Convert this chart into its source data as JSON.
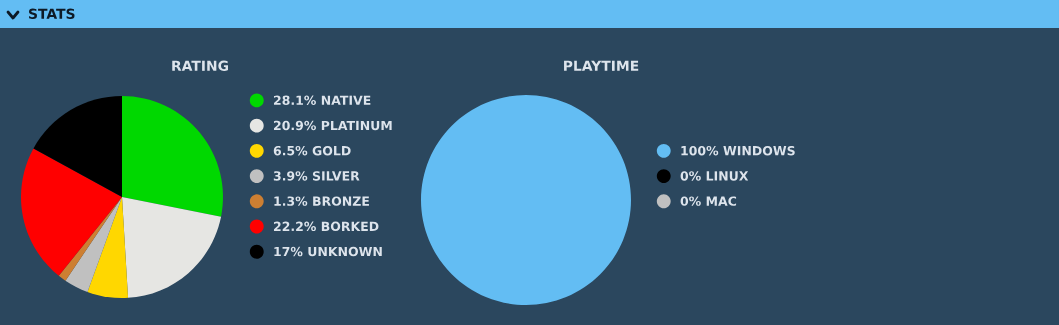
{
  "chart_data": [
    {
      "type": "pie",
      "title": "RATING",
      "annotations": [
        "STATS"
      ],
      "legend": "right",
      "categories": [
        "NATIVE",
        "PLATINUM",
        "GOLD",
        "SILVER",
        "BRONZE",
        "BORKED",
        "UNKNOWN"
      ],
      "values": [
        28.1,
        20.9,
        6.5,
        3.9,
        1.3,
        22.2,
        17
      ],
      "value_labels": [
        "28.1%",
        "20.9%",
        "6.5%",
        "3.9%",
        "1.3%",
        "22.2%",
        "17%"
      ],
      "colors": [
        "#00d800",
        "#e6e6e3",
        "#ffd700",
        "#c0c0c0",
        "#cd7f32",
        "#ff0000",
        "#000000"
      ]
    },
    {
      "type": "pie",
      "title": "PLAYTIME",
      "legend": "right",
      "categories": [
        "WINDOWS",
        "LINUX",
        "MAC"
      ],
      "values": [
        100,
        0,
        0
      ],
      "value_labels": [
        "100%",
        "0%",
        "0%"
      ],
      "colors": [
        "#63bdf3",
        "#000000",
        "#c0c0c0"
      ]
    }
  ]
}
